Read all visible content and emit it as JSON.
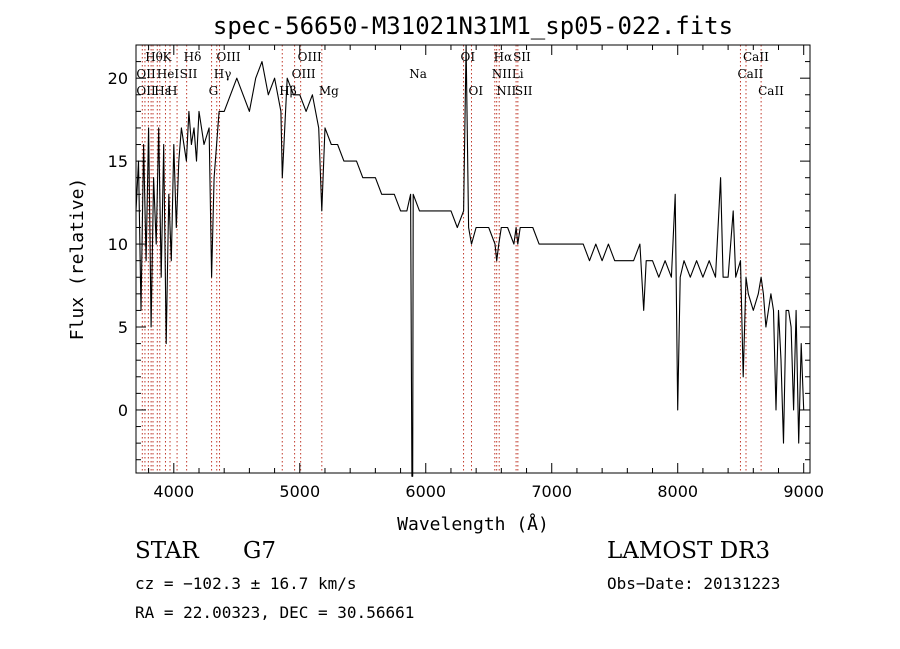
{
  "chart_data": {
    "type": "line",
    "title": "spec-56650-M31021N31M1_sp05-022.fits",
    "xlabel": "Wavelength (Å)",
    "ylabel": "Flux (relative)",
    "xlim": [
      3700,
      9050
    ],
    "ylim": [
      -3.8,
      22.0
    ],
    "xticks": [
      4000,
      5000,
      6000,
      7000,
      8000,
      9000
    ],
    "yticks": [
      0,
      5,
      10,
      15,
      20
    ],
    "xtick_labels": [
      "4000",
      "5000",
      "6000",
      "7000",
      "8000",
      "9000"
    ],
    "ytick_labels": [
      "0",
      "5",
      "10",
      "15",
      "20"
    ],
    "grid": false,
    "series": [
      {
        "name": "flux",
        "x": [
          3700,
          3720,
          3740,
          3760,
          3780,
          3800,
          3820,
          3840,
          3860,
          3880,
          3900,
          3920,
          3940,
          3960,
          3980,
          4000,
          4020,
          4040,
          4060,
          4080,
          4100,
          4120,
          4140,
          4160,
          4180,
          4200,
          4240,
          4280,
          4300,
          4320,
          4340,
          4360,
          4400,
          4450,
          4500,
          4550,
          4600,
          4650,
          4700,
          4750,
          4800,
          4850,
          4861,
          4900,
          4950,
          5000,
          5050,
          5100,
          5150,
          5175,
          5200,
          5250,
          5300,
          5350,
          5400,
          5450,
          5500,
          5550,
          5600,
          5650,
          5700,
          5750,
          5800,
          5850,
          5880,
          5890,
          5896,
          5900,
          5950,
          6000,
          6050,
          6100,
          6150,
          6200,
          6250,
          6300,
          6320,
          6340,
          6363,
          6400,
          6450,
          6500,
          6550,
          6563,
          6580,
          6600,
          6650,
          6700,
          6717,
          6731,
          6750,
          6800,
          6850,
          6900,
          6950,
          7000,
          7050,
          7100,
          7150,
          7200,
          7250,
          7300,
          7350,
          7400,
          7450,
          7500,
          7550,
          7600,
          7650,
          7700,
          7730,
          7750,
          7800,
          7850,
          7900,
          7950,
          7980,
          8000,
          8020,
          8050,
          8100,
          8150,
          8200,
          8250,
          8300,
          8340,
          8360,
          8400,
          8440,
          8460,
          8498,
          8520,
          8542,
          8560,
          8600,
          8640,
          8662,
          8680,
          8700,
          8740,
          8760,
          8780,
          8800,
          8820,
          8840,
          8860,
          8880,
          8900,
          8920,
          8940,
          8960,
          8980,
          9000
        ],
        "y": [
          12,
          15,
          6,
          16,
          9,
          17,
          5,
          14,
          10,
          17,
          8,
          16,
          4,
          13,
          9,
          16,
          11,
          15,
          17,
          16,
          15,
          18,
          16,
          17,
          15,
          18,
          16,
          17,
          8,
          14,
          16,
          18,
          18,
          19,
          20,
          19,
          18,
          20,
          21,
          19,
          20,
          18,
          14,
          20,
          19,
          19,
          18,
          19,
          17,
          12,
          17,
          16,
          16,
          15,
          15,
          15,
          14,
          14,
          14,
          13,
          13,
          13,
          12,
          12,
          13,
          -4,
          -4,
          13,
          12,
          12,
          12,
          12,
          12,
          12,
          11,
          12,
          22,
          11,
          10,
          11,
          11,
          11,
          10,
          9,
          10,
          11,
          11,
          10,
          11,
          10,
          11,
          11,
          11,
          10,
          10,
          10,
          10,
          10,
          10,
          10,
          10,
          9,
          10,
          9,
          10,
          9,
          9,
          9,
          9,
          10,
          6,
          9,
          9,
          8,
          9,
          8,
          13,
          0,
          8,
          9,
          8,
          9,
          8,
          9,
          8,
          14,
          8,
          8,
          12,
          8,
          9,
          2,
          8,
          7,
          6,
          7,
          8,
          7,
          5,
          7,
          6,
          0,
          6,
          3,
          -2,
          6,
          6,
          5,
          0,
          6,
          -2,
          4,
          0
        ]
      }
    ],
    "lines": {
      "positions": [
        3750,
        3771,
        3798,
        3820,
        3835,
        3869,
        3889,
        3934,
        3970,
        4026,
        4102,
        4300,
        4341,
        4363,
        4861,
        4959,
        5007,
        5175,
        6300,
        6363,
        6548,
        6563,
        6583,
        6717,
        6731,
        8498,
        8542,
        8662
      ],
      "labels": [
        {
          "text": "Hθ",
          "x": 3797,
          "row": 1
        },
        {
          "text": "K",
          "x": 3934,
          "row": 1
        },
        {
          "text": "Hδ",
          "x": 4102,
          "row": 1
        },
        {
          "text": "OIII",
          "x": 4363,
          "row": 1
        },
        {
          "text": "OIII",
          "x": 5007,
          "row": 1
        },
        {
          "text": "OI",
          "x": 6300,
          "row": 1
        },
        {
          "text": "Hα",
          "x": 6563,
          "row": 1
        },
        {
          "text": "SII",
          "x": 6717,
          "row": 1
        },
        {
          "text": "CaII",
          "x": 8542,
          "row": 1
        },
        {
          "text": "OII",
          "x": 3727,
          "row": 2
        },
        {
          "text": "HeI",
          "x": 3889,
          "row": 2
        },
        {
          "text": "SII",
          "x": 4070,
          "row": 2
        },
        {
          "text": "Hγ",
          "x": 4341,
          "row": 2
        },
        {
          "text": "OIII",
          "x": 4959,
          "row": 2
        },
        {
          "text": "NII",
          "x": 6548,
          "row": 2
        },
        {
          "text": "Li",
          "x": 6707,
          "row": 2
        },
        {
          "text": "CaII",
          "x": 8498,
          "row": 2
        },
        {
          "text": "Na",
          "x": 5893,
          "row": 2
        },
        {
          "text": "OII",
          "x": 3727,
          "row": 3
        },
        {
          "text": "Hε",
          "x": 3869,
          "row": 3
        },
        {
          "text": "H",
          "x": 3970,
          "row": 3
        },
        {
          "text": "G",
          "x": 4300,
          "row": 3
        },
        {
          "text": "Hβ",
          "x": 4861,
          "row": 3
        },
        {
          "text": "Mg",
          "x": 5175,
          "row": 3
        },
        {
          "text": "OI",
          "x": 6363,
          "row": 3
        },
        {
          "text": "NII",
          "x": 6583,
          "row": 3
        },
        {
          "text": "SII",
          "x": 6731,
          "row": 3
        },
        {
          "text": "CaII",
          "x": 8662,
          "row": 3
        }
      ]
    }
  },
  "info": {
    "object_class": "STAR",
    "subclass": "G7",
    "survey": "LAMOST DR3",
    "redshift": "cz = −102.3 ± 16.7 km/s",
    "obs_date": "Obs−Date: 20131223",
    "coords": "RA =  22.00323, DEC =  30.56661"
  }
}
